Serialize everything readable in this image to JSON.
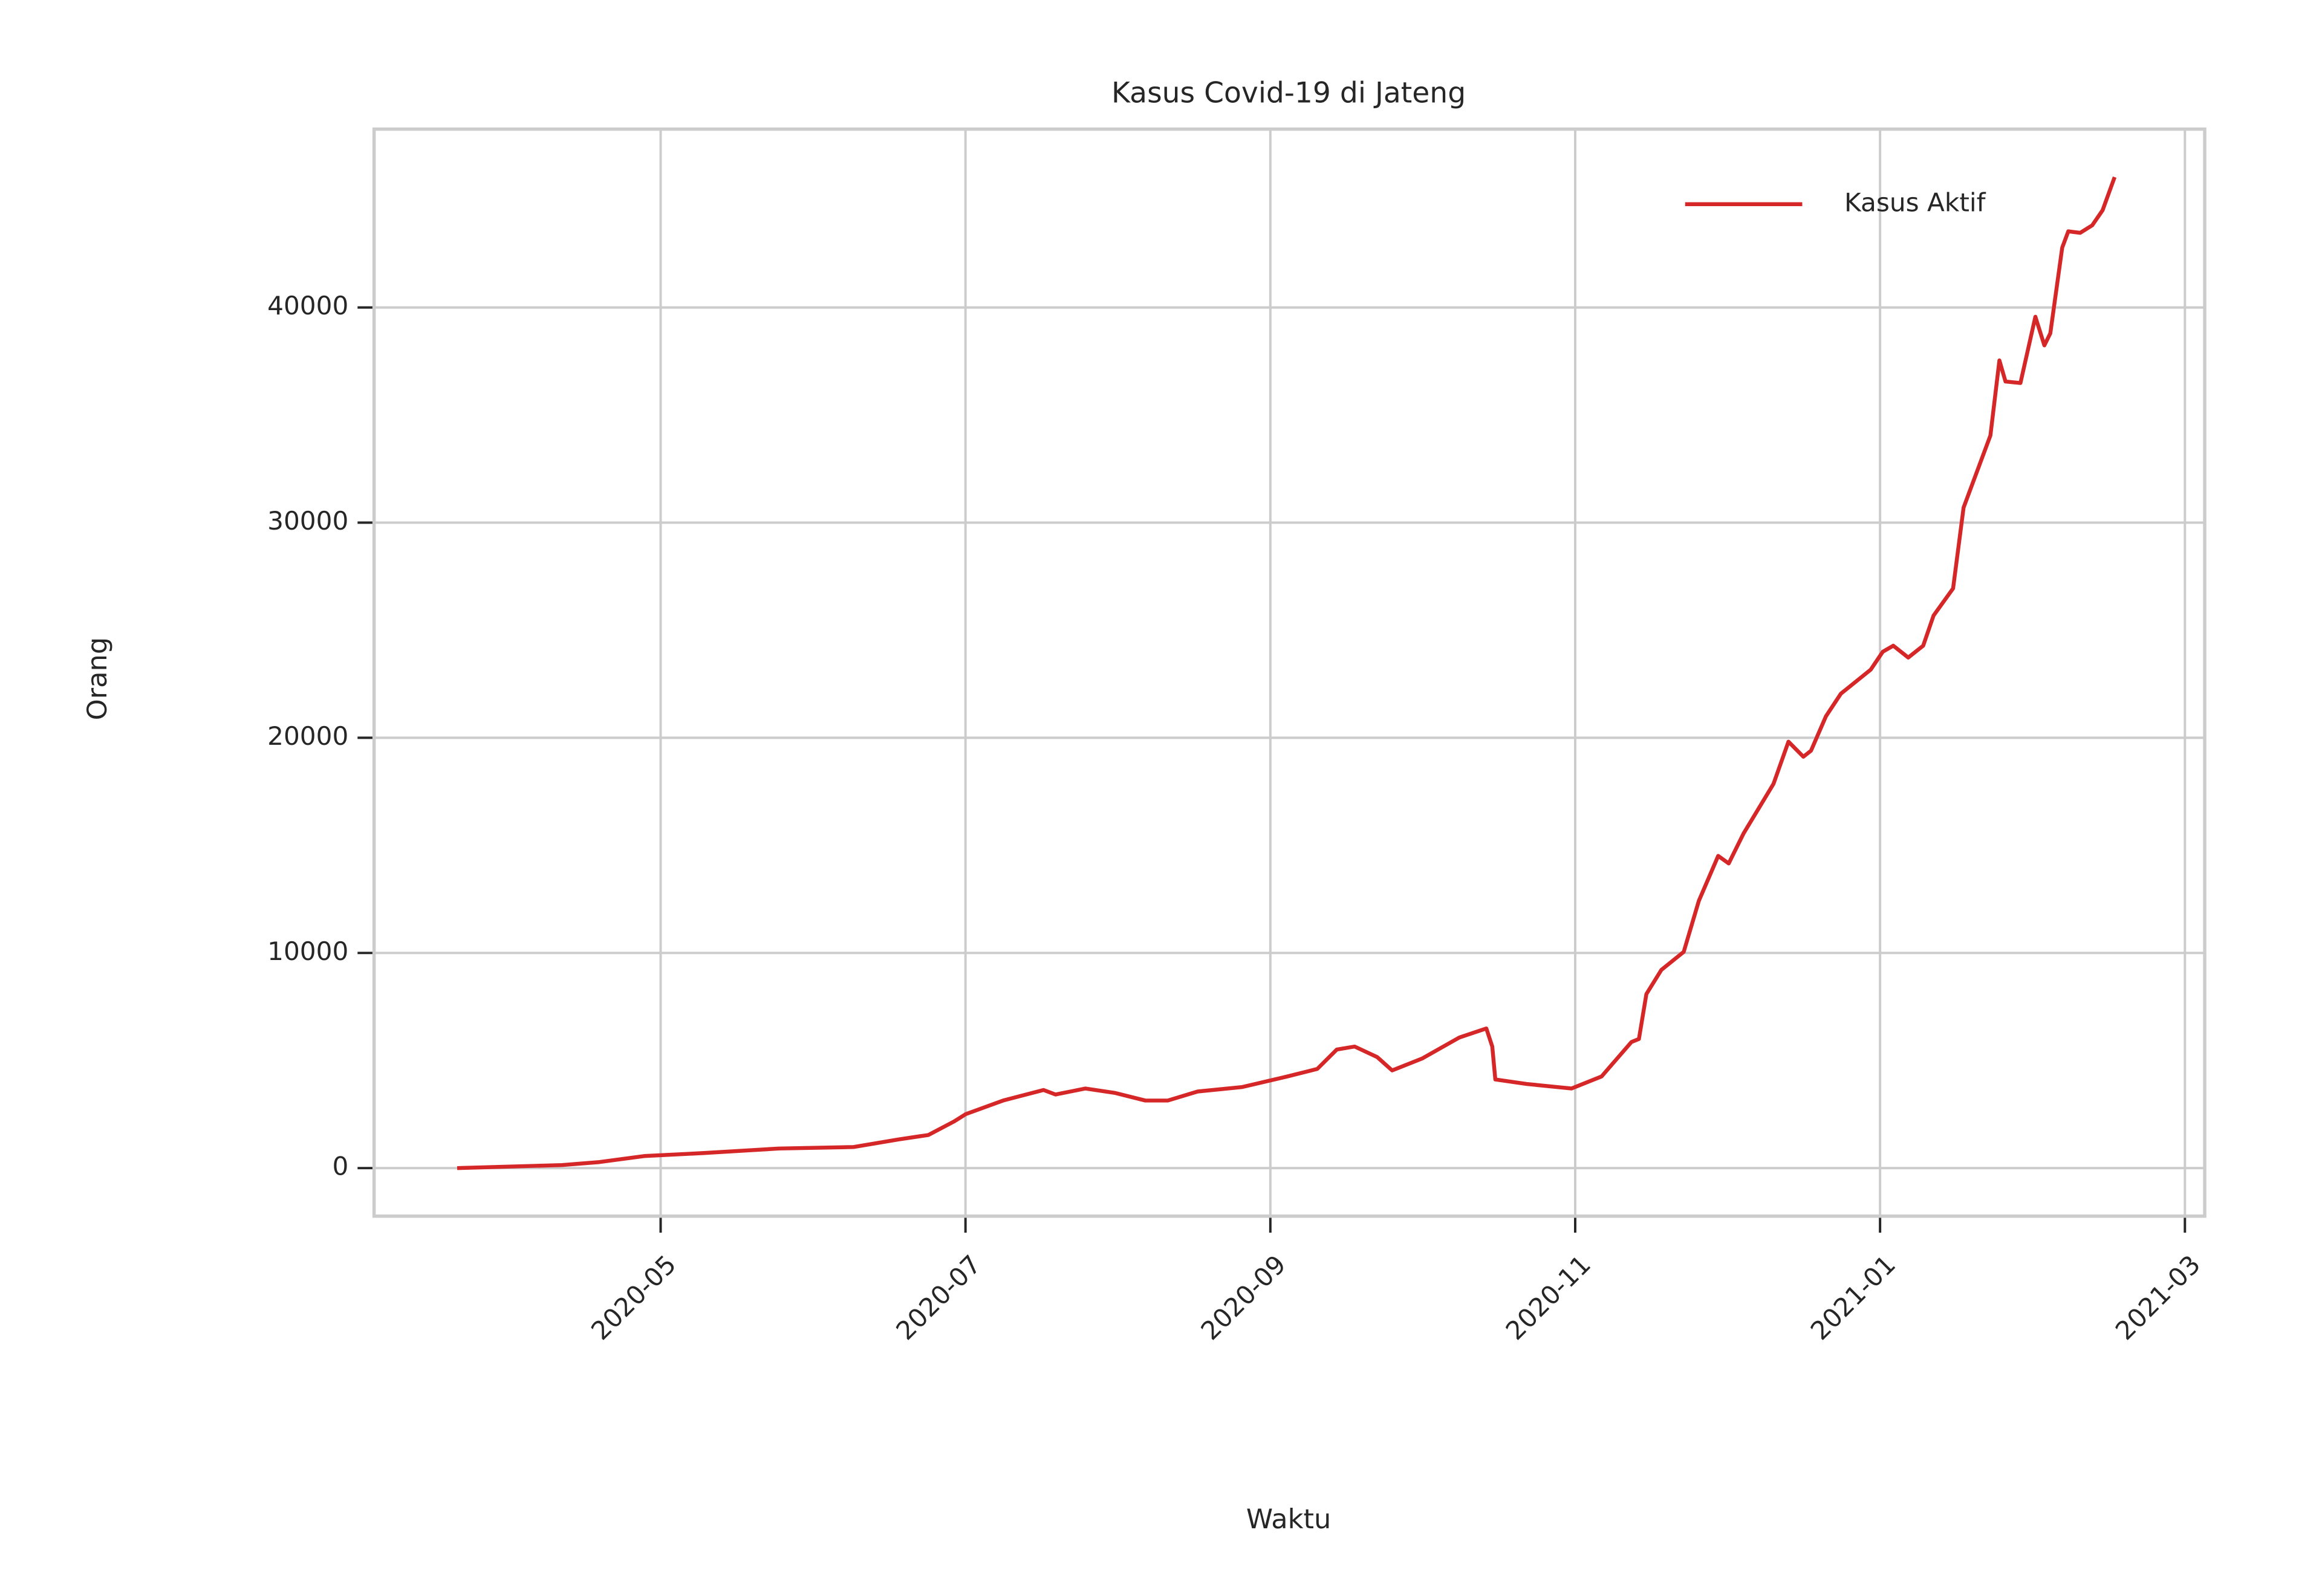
{
  "chart_data": {
    "type": "line",
    "title": "Kasus Covid-19 di Jateng",
    "x_label": "Waktu",
    "y_label": "Orang",
    "x": [
      2.665,
      3.352,
      3.598,
      3.892,
      4.285,
      4.775,
      5.266,
      5.56,
      5.757,
      5.923,
      6.002,
      6.247,
      6.512,
      6.591,
      6.787,
      6.983,
      7.18,
      7.327,
      7.523,
      7.817,
      8.112,
      8.308,
      8.436,
      8.553,
      8.701,
      8.799,
      8.995,
      9.24,
      9.417,
      9.456,
      9.476,
      9.682,
      9.878,
      9.976,
      10.173,
      10.369,
      10.418,
      10.467,
      10.565,
      10.712,
      10.811,
      10.938,
      11.007,
      11.105,
      11.301,
      11.399,
      11.497,
      11.547,
      11.645,
      11.743,
      11.939,
      12.018,
      12.087,
      12.185,
      12.283,
      12.351,
      12.479,
      12.548,
      12.724,
      12.783,
      12.823,
      12.921,
      13.019,
      13.078,
      13.117,
      13.195,
      13.235,
      13.313,
      13.392,
      13.46,
      13.539
    ],
    "series": [
      {
        "name": "Kasus Aktif",
        "color": "#d62728",
        "values": [
          0,
          140,
          280,
          560,
          700,
          910,
          980,
          1330,
          1540,
          2160,
          2510,
          3140,
          3630,
          3420,
          3700,
          3490,
          3140,
          3140,
          3560,
          3770,
          4260,
          4610,
          5510,
          5650,
          5160,
          4540,
          5090,
          6070,
          6490,
          5650,
          4120,
          3910,
          3770,
          3700,
          4260,
          5860,
          6000,
          8090,
          9210,
          10050,
          12420,
          14510,
          14160,
          15560,
          17860,
          19820,
          19120,
          19400,
          21000,
          22050,
          23170,
          24000,
          24280,
          23730,
          24280,
          25680,
          26940,
          30700,
          34050,
          37540,
          36560,
          36490,
          39570,
          38240,
          38800,
          42780,
          43540,
          43470,
          43820,
          44520,
          46060
        ]
      }
    ],
    "xlim": [
      2.12,
      14.13
    ],
    "xticks": [
      {
        "value": 4,
        "label": "2020-05"
      },
      {
        "value": 6,
        "label": "2020-07"
      },
      {
        "value": 8,
        "label": "2020-09"
      },
      {
        "value": 10,
        "label": "2020-11"
      },
      {
        "value": 12,
        "label": "2021-01"
      },
      {
        "value": 14,
        "label": "2021-03"
      }
    ],
    "ylim": [
      -2233,
      48290
    ],
    "yticks": [
      0,
      10000,
      20000,
      30000,
      40000
    ],
    "grid": true,
    "legend": "upper right"
  }
}
